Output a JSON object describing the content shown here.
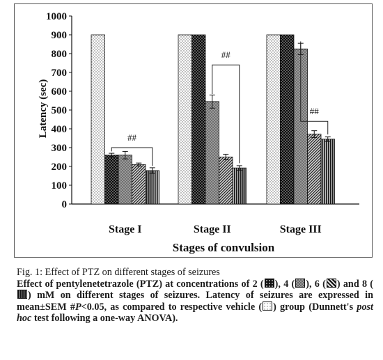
{
  "chart_data": {
    "type": "bar",
    "ylabel": "Latency (sec)",
    "xlabel": "Stages of convulsion",
    "ylim": [
      0,
      1000
    ],
    "yticks": [
      "0",
      "100",
      "200",
      "300",
      "400",
      "500",
      "600",
      "700",
      "800",
      "900",
      "1000"
    ],
    "categories": [
      "Stage I",
      "Stage II",
      "Stage III"
    ],
    "series": [
      {
        "values": [
          900,
          900,
          900
        ],
        "errors": [
          0,
          0,
          0
        ],
        "fill": "#f2f2f2",
        "pattern": "dots-light"
      },
      {
        "values": [
          260,
          900,
          900
        ],
        "errors": [
          10,
          0,
          0
        ],
        "fill": "#111111",
        "pattern": "dots-dark"
      },
      {
        "values": [
          260,
          545,
          825
        ],
        "errors": [
          20,
          35,
          30
        ],
        "fill": "#8a8a8a",
        "pattern": "checker"
      },
      {
        "values": [
          210,
          250,
          372
        ],
        "errors": [
          8,
          15,
          18
        ],
        "fill": "#6a6a6a",
        "pattern": "diagonal"
      },
      {
        "values": [
          178,
          192,
          345
        ],
        "errors": [
          15,
          12,
          12
        ],
        "fill": "#444444",
        "pattern": "vertical"
      }
    ],
    "annotations": [
      {
        "category": "Stage I",
        "text": "##",
        "ylevel": 300
      },
      {
        "category": "Stage II",
        "text": "##",
        "ylevel": 740
      },
      {
        "category": "Stage III",
        "text": "##",
        "ylevel": 440
      }
    ],
    "grid": false,
    "legend": "none"
  },
  "caption": {
    "title": "Fig. 1: Effect of PTZ on different stages of seizures",
    "seg1": "Effect of pentylenetetrazole  (PTZ) at concentrations of 2 (",
    "seg2": "),",
    "seg3": "4 (",
    "seg4": "), 6 (",
    "seg5": ") and 8 (",
    "seg6": ") mM on different stages of seizures. Latency of seizures are expressed in mean±SEM #",
    "p_italic": "P",
    "seg7": "<0.05, as compared to respective vehicle (",
    "seg8": ") group (Dunnett's ",
    "posthoc_italic": "post hoc",
    "seg9": " test following a one-way ANOVA)."
  }
}
